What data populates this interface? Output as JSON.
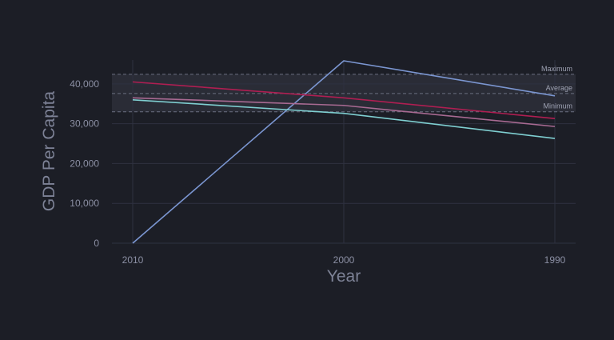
{
  "chart_data": {
    "type": "line",
    "xlabel": "Year",
    "ylabel": "GDP Per Capita",
    "categories": [
      "2010",
      "2000",
      "1990"
    ],
    "ylim": [
      0,
      46000
    ],
    "yticks": [
      0,
      10000,
      20000,
      30000,
      40000
    ],
    "ytick_labels": [
      "0",
      "10,000",
      "20,000",
      "30,000",
      "40,000"
    ],
    "grid": true,
    "legend": "none",
    "series": [
      {
        "color": "#7b96d1",
        "values": [
          0,
          45800,
          37000
        ]
      },
      {
        "color": "#b01e52",
        "values": [
          40500,
          36500,
          31300
        ]
      },
      {
        "color": "#a86a92",
        "values": [
          36500,
          34600,
          29300
        ]
      },
      {
        "color": "#7fcfd1",
        "values": [
          36000,
          32600,
          26300
        ]
      }
    ],
    "band": {
      "min": 33000,
      "max": 42400
    },
    "reference_lines": [
      {
        "label": "Maximum",
        "value": 42400
      },
      {
        "label": "Average",
        "value": 37600
      },
      {
        "label": "Minimum",
        "value": 33000
      }
    ],
    "colors": {
      "background": "#1c1e26",
      "grid": "#2e3140",
      "axis_text": "#8b8fa3",
      "axis_title": "#7d8296",
      "reference_line": "#6b6f80",
      "band": "#2a2c36"
    }
  }
}
